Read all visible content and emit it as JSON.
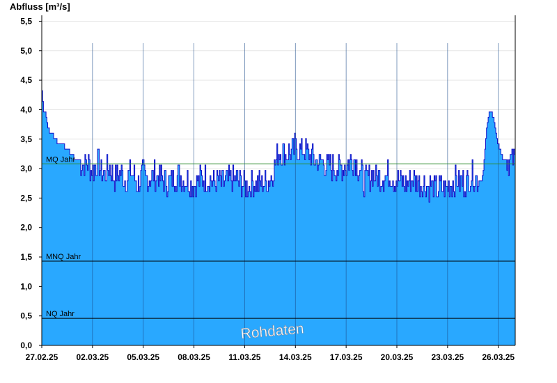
{
  "chart_data": {
    "type": "area",
    "ylabel": "Abfluss [m³/s]",
    "ylim": [
      0,
      5.6
    ],
    "yticks": [
      "0,0",
      "0,5",
      "1,0",
      "1,5",
      "2,0",
      "2,5",
      "3,0",
      "3,5",
      "4,0",
      "4,5",
      "5,0",
      "5,5"
    ],
    "ytick_values": [
      0,
      0.5,
      1.0,
      1.5,
      2.0,
      2.5,
      3.0,
      3.5,
      4.0,
      4.5,
      5.0,
      5.5
    ],
    "xticks": [
      "27.02.25",
      "02.03.25",
      "05.03.25",
      "08.03.25",
      "11.03.25",
      "14.03.25",
      "17.03.25",
      "20.03.25",
      "23.03.25",
      "26.03.25"
    ],
    "xtick_days": [
      0,
      3,
      6,
      9,
      12,
      15,
      18,
      21,
      24,
      27
    ],
    "xlim_days": [
      0,
      28
    ],
    "reference_lines": [
      {
        "label": "MQ Jahr",
        "value": 3.08,
        "color": "#2e8b2e"
      },
      {
        "label": "MNQ Jahr",
        "value": 1.43,
        "color": "#000000"
      },
      {
        "label": "NQ Jahr",
        "value": 0.46,
        "color": "#000000"
      }
    ],
    "watermark": "Rohdaten",
    "grid": true,
    "fill_color": "#29a8ff",
    "line_color": "#1010c8",
    "series": [
      {
        "x": [
          0,
          0.1,
          0.2,
          0.4,
          0.6,
          0.9,
          1.2,
          1.6,
          2.0,
          2.4,
          2.8,
          3.0,
          3.3,
          3.6,
          4.0,
          4.3,
          4.6,
          5.0,
          5.3,
          5.6,
          6.0,
          6.3,
          6.6,
          7.0,
          7.5,
          8.0,
          8.5,
          9.0,
          9.5,
          10.0,
          10.5,
          11.0,
          11.5,
          12.0,
          12.5,
          13.0,
          13.5,
          14.0,
          14.5,
          15.0,
          15.5,
          16.0,
          16.5,
          17.0,
          17.5,
          18.0,
          18.5,
          19.0,
          19.5,
          20.0,
          20.5,
          21.0,
          21.5,
          22.0,
          22.5,
          23.0,
          23.5,
          24.0,
          24.5,
          25.0,
          25.5,
          26.0,
          26.1,
          26.3,
          26.5,
          26.7,
          26.9,
          27.1,
          27.3,
          27.6,
          28.0
        ],
        "y": [
          4.35,
          4.0,
          3.97,
          3.65,
          3.6,
          3.45,
          3.4,
          3.3,
          3.15,
          3.1,
          3.05,
          2.95,
          3.1,
          2.9,
          3.0,
          2.85,
          2.95,
          2.8,
          2.95,
          2.75,
          2.9,
          2.8,
          2.9,
          2.85,
          2.75,
          2.9,
          2.8,
          2.75,
          2.85,
          2.8,
          2.75,
          2.8,
          2.8,
          2.7,
          2.75,
          2.75,
          2.8,
          3.3,
          3.25,
          3.35,
          3.3,
          3.2,
          3.1,
          3.05,
          3.0,
          3.05,
          3.2,
          2.8,
          2.9,
          2.85,
          2.9,
          2.8,
          2.75,
          2.8,
          2.75,
          2.7,
          2.65,
          2.7,
          2.8,
          2.75,
          2.9,
          2.75,
          3.0,
          3.7,
          4.0,
          3.85,
          3.5,
          3.3,
          3.15,
          3.15,
          3.15
        ]
      }
    ]
  }
}
